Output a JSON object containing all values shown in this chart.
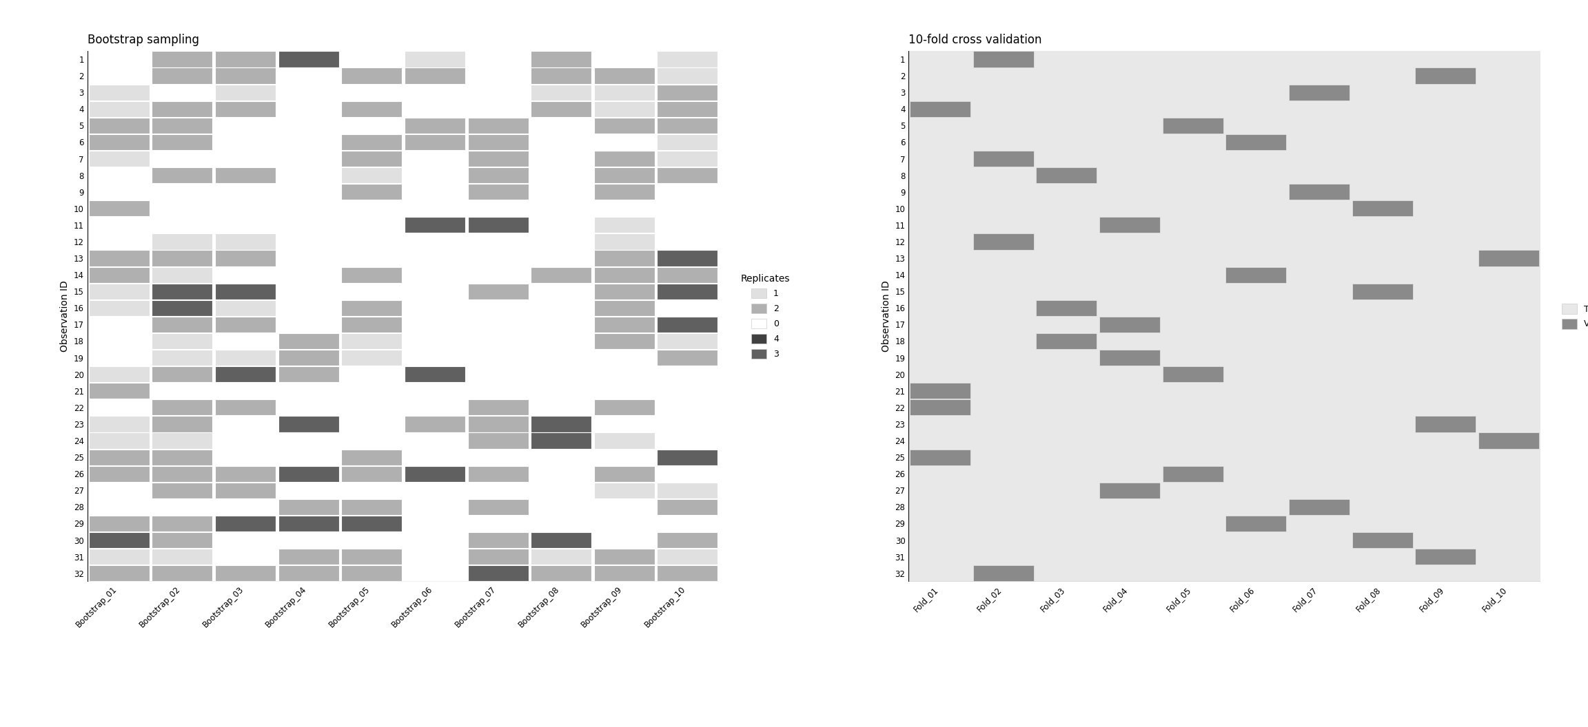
{
  "bootstrap_data": [
    [
      0,
      2,
      2,
      3,
      0,
      1,
      0,
      2,
      0,
      1
    ],
    [
      0,
      2,
      2,
      0,
      2,
      2,
      0,
      2,
      2,
      1
    ],
    [
      1,
      0,
      1,
      0,
      0,
      0,
      0,
      1,
      1,
      2
    ],
    [
      1,
      2,
      2,
      0,
      2,
      0,
      0,
      2,
      1,
      2
    ],
    [
      2,
      2,
      0,
      0,
      0,
      2,
      2,
      0,
      2,
      2
    ],
    [
      2,
      2,
      0,
      0,
      2,
      2,
      2,
      0,
      0,
      1
    ],
    [
      1,
      0,
      0,
      0,
      2,
      0,
      2,
      0,
      2,
      1
    ],
    [
      0,
      2,
      2,
      0,
      1,
      0,
      2,
      0,
      2,
      2
    ],
    [
      0,
      0,
      0,
      0,
      2,
      0,
      2,
      0,
      2,
      0
    ],
    [
      2,
      0,
      0,
      0,
      0,
      0,
      0,
      0,
      0,
      0
    ],
    [
      0,
      0,
      0,
      0,
      0,
      3,
      3,
      0,
      1,
      0
    ],
    [
      0,
      1,
      1,
      0,
      0,
      0,
      0,
      0,
      1,
      0
    ],
    [
      2,
      2,
      2,
      0,
      0,
      0,
      0,
      0,
      2,
      3
    ],
    [
      2,
      1,
      0,
      0,
      2,
      0,
      0,
      2,
      2,
      2
    ],
    [
      1,
      3,
      3,
      0,
      0,
      0,
      2,
      0,
      2,
      3
    ],
    [
      1,
      3,
      1,
      0,
      2,
      0,
      0,
      0,
      2,
      0
    ],
    [
      0,
      2,
      2,
      0,
      2,
      0,
      0,
      0,
      2,
      3
    ],
    [
      0,
      1,
      0,
      2,
      1,
      0,
      0,
      0,
      2,
      1
    ],
    [
      0,
      1,
      1,
      2,
      1,
      0,
      0,
      0,
      0,
      2
    ],
    [
      1,
      2,
      3,
      2,
      0,
      3,
      0,
      0,
      0,
      0
    ],
    [
      2,
      0,
      0,
      0,
      0,
      0,
      0,
      0,
      0,
      0
    ],
    [
      0,
      2,
      2,
      0,
      0,
      0,
      2,
      0,
      2,
      0
    ],
    [
      1,
      2,
      0,
      3,
      0,
      2,
      2,
      3,
      0,
      0
    ],
    [
      1,
      1,
      0,
      0,
      0,
      0,
      2,
      3,
      1,
      0
    ],
    [
      2,
      2,
      0,
      0,
      2,
      0,
      0,
      0,
      0,
      3
    ],
    [
      2,
      2,
      2,
      3,
      2,
      3,
      2,
      0,
      2,
      0
    ],
    [
      0,
      2,
      2,
      0,
      0,
      0,
      0,
      0,
      1,
      1
    ],
    [
      0,
      0,
      0,
      2,
      2,
      0,
      2,
      0,
      0,
      2
    ],
    [
      2,
      2,
      3,
      3,
      3,
      0,
      0,
      0,
      0,
      0
    ],
    [
      3,
      2,
      0,
      0,
      0,
      0,
      2,
      3,
      0,
      2
    ],
    [
      1,
      1,
      0,
      2,
      2,
      0,
      2,
      1,
      2,
      1
    ],
    [
      2,
      2,
      2,
      2,
      2,
      0,
      3,
      2,
      2,
      2
    ]
  ],
  "cv_validation": [
    [
      null,
      2,
      null,
      null,
      null,
      null,
      null,
      null,
      null,
      null
    ],
    [
      null,
      null,
      null,
      null,
      null,
      null,
      null,
      null,
      2,
      null
    ],
    [
      null,
      null,
      null,
      null,
      null,
      null,
      2,
      null,
      null,
      null
    ],
    [
      1,
      null,
      null,
      null,
      null,
      null,
      null,
      null,
      null,
      null
    ],
    [
      null,
      null,
      null,
      null,
      2,
      null,
      null,
      null,
      null,
      null
    ],
    [
      null,
      null,
      null,
      null,
      null,
      2,
      null,
      null,
      null,
      null
    ],
    [
      null,
      2,
      null,
      null,
      null,
      null,
      null,
      null,
      null,
      null
    ],
    [
      null,
      null,
      2,
      null,
      null,
      null,
      null,
      null,
      null,
      null
    ],
    [
      null,
      null,
      null,
      null,
      null,
      null,
      2,
      null,
      null,
      null
    ],
    [
      null,
      null,
      null,
      null,
      null,
      null,
      null,
      2,
      null,
      null
    ],
    [
      null,
      null,
      null,
      2,
      null,
      null,
      null,
      null,
      null,
      null
    ],
    [
      null,
      2,
      null,
      null,
      null,
      null,
      null,
      null,
      null,
      null
    ],
    [
      null,
      null,
      null,
      null,
      null,
      null,
      null,
      null,
      null,
      2
    ],
    [
      null,
      null,
      null,
      null,
      null,
      2,
      null,
      null,
      null,
      null
    ],
    [
      null,
      null,
      null,
      null,
      null,
      null,
      null,
      2,
      null,
      null
    ],
    [
      null,
      null,
      2,
      null,
      null,
      null,
      null,
      null,
      null,
      null
    ],
    [
      null,
      null,
      null,
      2,
      null,
      null,
      null,
      null,
      null,
      null
    ],
    [
      null,
      null,
      2,
      null,
      null,
      null,
      null,
      null,
      null,
      null
    ],
    [
      null,
      null,
      null,
      2,
      null,
      null,
      null,
      null,
      null,
      null
    ],
    [
      null,
      null,
      null,
      null,
      2,
      null,
      null,
      null,
      null,
      null
    ],
    [
      1,
      null,
      null,
      null,
      null,
      null,
      null,
      null,
      null,
      null
    ],
    [
      1,
      null,
      null,
      null,
      null,
      null,
      null,
      null,
      null,
      null
    ],
    [
      null,
      null,
      null,
      null,
      null,
      null,
      null,
      null,
      2,
      null
    ],
    [
      null,
      null,
      null,
      null,
      null,
      null,
      null,
      null,
      null,
      2
    ],
    [
      1,
      null,
      null,
      null,
      null,
      null,
      null,
      null,
      null,
      null
    ],
    [
      null,
      null,
      null,
      null,
      2,
      null,
      null,
      null,
      null,
      null
    ],
    [
      null,
      null,
      null,
      2,
      null,
      null,
      null,
      null,
      null,
      null
    ],
    [
      null,
      null,
      null,
      null,
      null,
      null,
      2,
      null,
      null,
      null
    ],
    [
      null,
      null,
      null,
      null,
      null,
      2,
      null,
      null,
      null,
      null
    ],
    [
      null,
      null,
      null,
      null,
      null,
      null,
      null,
      2,
      null,
      null
    ],
    [
      null,
      null,
      null,
      null,
      null,
      null,
      null,
      null,
      2,
      null
    ],
    [
      null,
      2,
      null,
      null,
      null,
      null,
      null,
      null,
      null,
      null
    ]
  ],
  "bootstrap_cols": [
    "Bootstrap_01",
    "Bootstrap_02",
    "Bootstrap_03",
    "Bootstrap_04",
    "Bootstrap_05",
    "Bootstrap_06",
    "Bootstrap_07",
    "Bootstrap_08",
    "Bootstrap_09",
    "Bootstrap_10"
  ],
  "cv_cols": [
    "Fold_01",
    "Fold_02",
    "Fold_03",
    "Fold_04",
    "Fold_05",
    "Fold_06",
    "Fold_07",
    "Fold_08",
    "Fold_09",
    "Fold_10"
  ],
  "obs_labels": [
    "1",
    "2",
    "3",
    "4",
    "5",
    "6",
    "7",
    "8",
    "9",
    "10",
    "11",
    "12",
    "13",
    "14",
    "15",
    "16",
    "17",
    "18",
    "19",
    "20",
    "21",
    "22",
    "23",
    "24",
    "25",
    "26",
    "27",
    "28",
    "29",
    "30",
    "31",
    "32"
  ],
  "title_bootstrap": "Bootstrap sampling",
  "title_cv": "10-fold cross validation",
  "ylabel": "Observation ID",
  "legend_replicates_labels": [
    "1",
    "2",
    "0",
    "4",
    "3"
  ],
  "legend_replicates_values": [
    1,
    2,
    0,
    4,
    3
  ],
  "color_0": "#ffffff",
  "color_1": "#e0e0e0",
  "color_2": "#b0b0b0",
  "color_3": "#606060",
  "color_4": "#404040",
  "training_color": "#e8e8e8",
  "validation_color": "#8a8a8a",
  "bg_bootstrap": "#ffffff",
  "cell_edge": "#ffffff"
}
